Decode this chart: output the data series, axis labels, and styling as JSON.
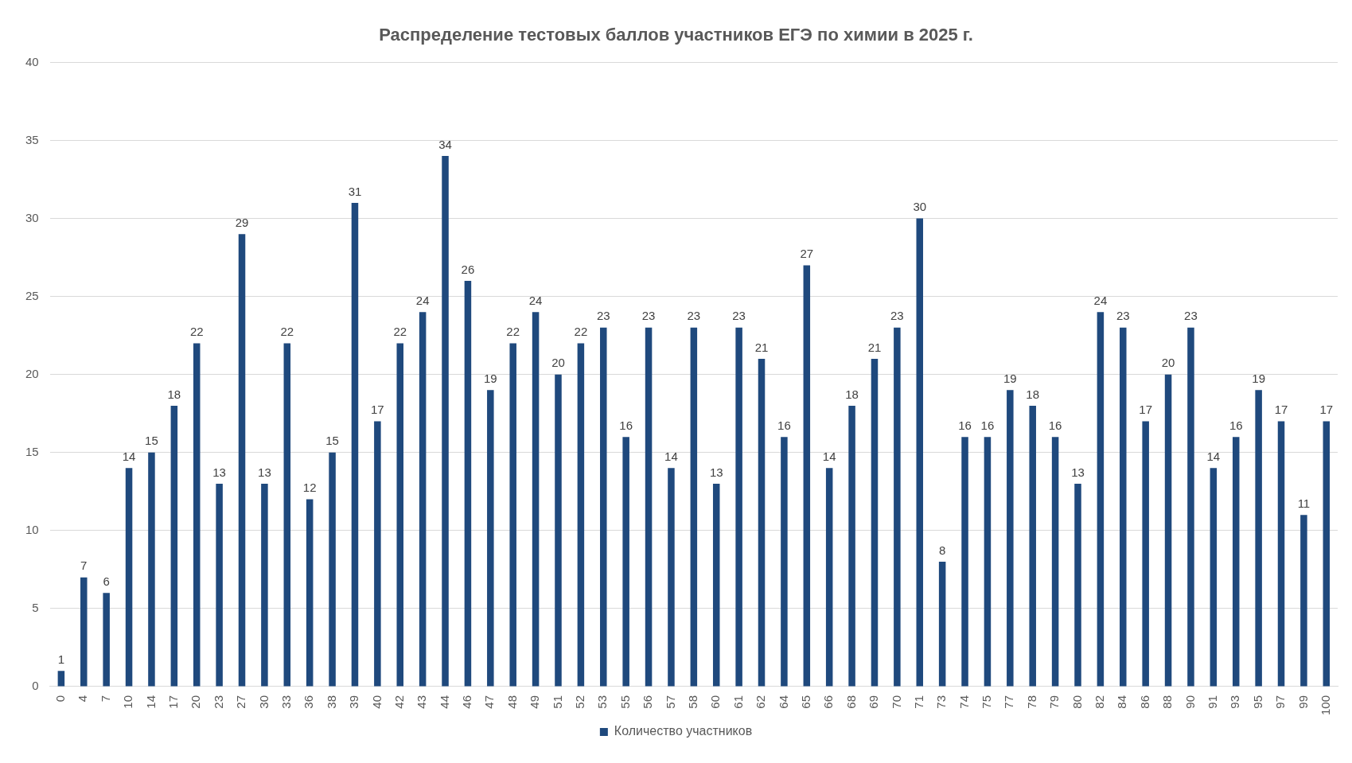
{
  "chart_data": {
    "type": "bar",
    "title": "Распределение тестовых баллов участников ЕГЭ по химии в 2025 г.",
    "categories": [
      "0",
      "4",
      "7",
      "10",
      "14",
      "17",
      "20",
      "23",
      "27",
      "30",
      "33",
      "36",
      "38",
      "39",
      "40",
      "42",
      "43",
      "44",
      "46",
      "47",
      "48",
      "49",
      "51",
      "52",
      "53",
      "55",
      "56",
      "57",
      "58",
      "60",
      "61",
      "62",
      "64",
      "65",
      "66",
      "68",
      "69",
      "70",
      "71",
      "73",
      "74",
      "75",
      "77",
      "78",
      "79",
      "80",
      "82",
      "84",
      "86",
      "88",
      "90",
      "91",
      "93",
      "95",
      "97",
      "99",
      "100"
    ],
    "series": [
      {
        "name": "Количество участников",
        "color": "#1f497d",
        "values": [
          1,
          7,
          6,
          14,
          15,
          18,
          22,
          13,
          29,
          13,
          22,
          12,
          15,
          31,
          17,
          22,
          24,
          34,
          26,
          19,
          22,
          24,
          20,
          22,
          23,
          16,
          23,
          14,
          23,
          13,
          23,
          21,
          16,
          27,
          14,
          18,
          21,
          23,
          30,
          8,
          16,
          16,
          19,
          18,
          16,
          13,
          24,
          23,
          17,
          20,
          23,
          14,
          16,
          19,
          17,
          11,
          17
        ]
      }
    ],
    "ylim": [
      0,
      40
    ],
    "yticks": [
      0,
      5,
      10,
      15,
      20,
      25,
      30,
      35,
      40
    ],
    "grid": "y",
    "legend": "bottom",
    "data_labels": true
  }
}
